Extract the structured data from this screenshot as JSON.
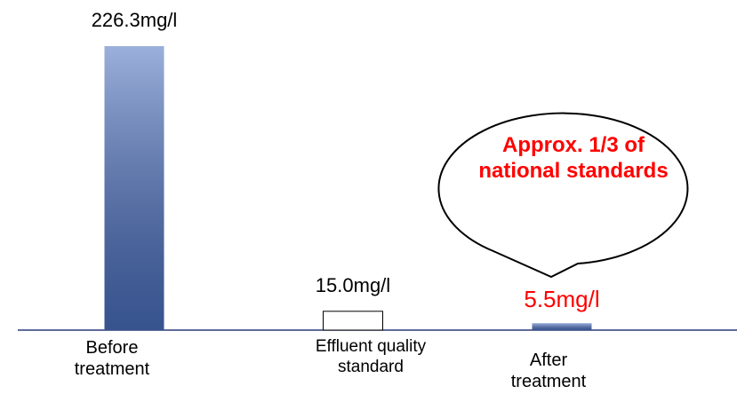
{
  "chart_data": {
    "type": "bar",
    "categories": [
      "Before treatment",
      "Effluent quality standard",
      "After treatment"
    ],
    "values": [
      226.3,
      15.0,
      5.5
    ],
    "value_labels": [
      "226.3mg/l",
      "15.0mg/l",
      "5.5mg/l"
    ],
    "colors": [
      "#4a6fbe",
      "#ffffff",
      "#4a6fbe"
    ],
    "label_colors": [
      "#000000",
      "#000000",
      "#ff0000"
    ],
    "annotation": "Approx. 1/3 of national standards",
    "annotation_color": "#ff0000"
  }
}
